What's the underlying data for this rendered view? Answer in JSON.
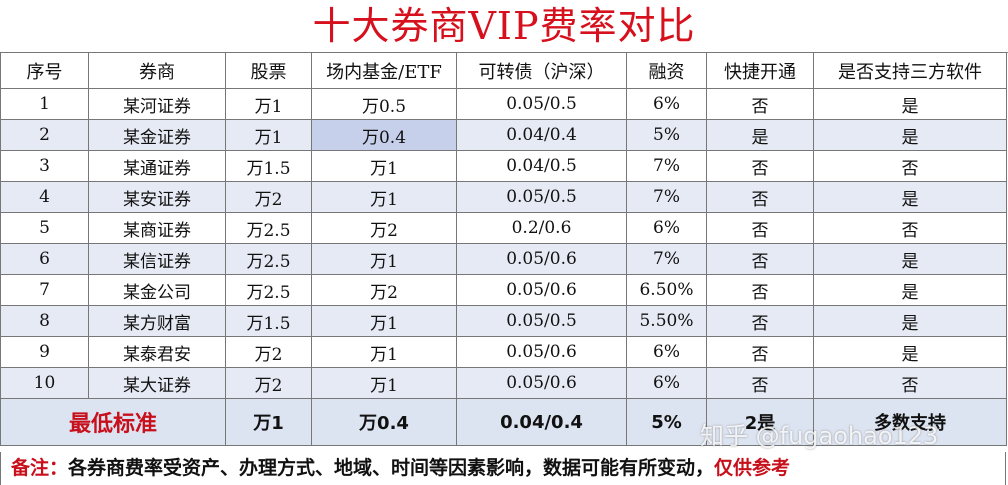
{
  "title": "十大券商VIP费率对比",
  "headers": [
    "序号",
    "券商",
    "股票",
    "场内基金/ETF",
    "可转债（沪深）",
    "融资",
    "快捷开通",
    "是否支持三方软件"
  ],
  "rows": [
    [
      "1",
      "某河证券",
      "万1",
      "万0.5",
      "0.05/0.5",
      "6%",
      "否",
      "是"
    ],
    [
      "2",
      "某金证券",
      "万1",
      "万0.4",
      "0.04/0.4",
      "5%",
      "是",
      "是"
    ],
    [
      "3",
      "某通证券",
      "万1.5",
      "万1",
      "0.04/0.5",
      "7%",
      "否",
      "否"
    ],
    [
      "4",
      "某安证券",
      "万2",
      "万1",
      "0.05/0.5",
      "7%",
      "否",
      "是"
    ],
    [
      "5",
      "某商证券",
      "万2.5",
      "万2",
      "0.2/0.6",
      "6%",
      "否",
      "否"
    ],
    [
      "6",
      "某信证券",
      "万2.5",
      "万1",
      "0.05/0.6",
      "7%",
      "否",
      "是"
    ],
    [
      "7",
      "某金公司",
      "万2.5",
      "万2",
      "0.05/0.6",
      "6.50%",
      "否",
      "是"
    ],
    [
      "8",
      "某方财富",
      "万1.5",
      "万1",
      "0.05/0.5",
      "5.50%",
      "否",
      "是"
    ],
    [
      "9",
      "某泰君安",
      "万2",
      "万1",
      "0.05/0.6",
      "6%",
      "否",
      "是"
    ],
    [
      "10",
      "某大证券",
      "万2",
      "万1",
      "0.05/0.6",
      "6%",
      "否",
      "否"
    ]
  ],
  "minimum": {
    "label": "最低标准",
    "values": [
      "万1",
      "万0.4",
      "0.04/0.4",
      "5%",
      "2是",
      "多数支持"
    ]
  },
  "note": {
    "label": "备注：",
    "text": "各券商费率受资产、办理方式、地域、时间等因素影响，数据可能有所变动，",
    "tail": "仅供参考"
  },
  "watermark": "知乎 @fugaohao123"
}
